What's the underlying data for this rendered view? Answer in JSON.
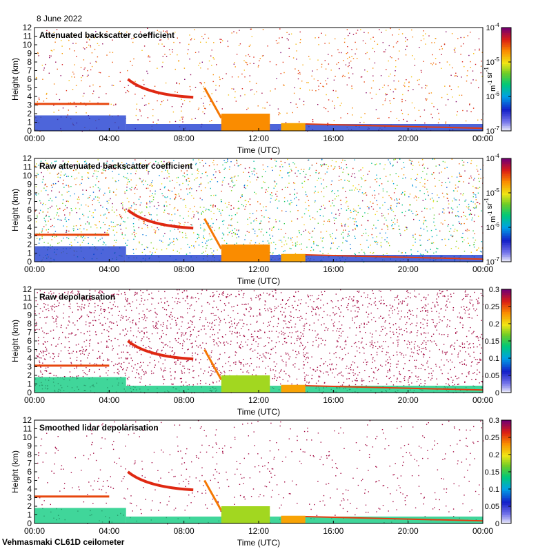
{
  "date_label": "8 June 2022",
  "footer": "Vehmasmaki CL61D ceilometer",
  "chart_data": [
    {
      "type": "heatmap",
      "title": "Attenuated backscatter coefficient",
      "xlabel": "Time (UTC)",
      "ylabel": "Height (km)",
      "x_ticks": [
        "00:00",
        "04:00",
        "08:00",
        "12:00",
        "16:00",
        "20:00",
        "00:00"
      ],
      "y_ticks": [
        "0",
        "1",
        "2",
        "3",
        "4",
        "5",
        "6",
        "7",
        "8",
        "9",
        "10",
        "11",
        "12"
      ],
      "ylim": [
        0,
        12
      ],
      "colorbar": {
        "scale": "log",
        "range": [
          1e-07,
          0.0001
        ],
        "ticks": [
          {
            "base": "10",
            "exp": "-4"
          },
          {
            "base": "10",
            "exp": "-5"
          },
          {
            "base": "10",
            "exp": "-6"
          },
          {
            "base": "10",
            "exp": "-7"
          }
        ],
        "unit_parts": [
          {
            "base": "m",
            "exp": "-1"
          },
          {
            "base": " sr",
            "exp": "-1"
          }
        ],
        "colormap": "jet"
      }
    },
    {
      "type": "heatmap",
      "title": "Raw attenuated backscatter coefficient",
      "xlabel": "Time (UTC)",
      "ylabel": "Height (km)",
      "x_ticks": [
        "00:00",
        "04:00",
        "08:00",
        "12:00",
        "16:00",
        "20:00",
        "00:00"
      ],
      "y_ticks": [
        "0",
        "1",
        "2",
        "3",
        "4",
        "5",
        "6",
        "7",
        "8",
        "9",
        "10",
        "11",
        "12"
      ],
      "ylim": [
        0,
        12
      ],
      "colorbar": {
        "scale": "log",
        "range": [
          1e-07,
          0.0001
        ],
        "ticks": [
          {
            "base": "10",
            "exp": "-4"
          },
          {
            "base": "10",
            "exp": "-5"
          },
          {
            "base": "10",
            "exp": "-6"
          },
          {
            "base": "10",
            "exp": "-7"
          }
        ],
        "unit_parts": [
          {
            "base": "m",
            "exp": "-1"
          },
          {
            "base": " sr",
            "exp": "-1"
          }
        ],
        "colormap": "jet"
      }
    },
    {
      "type": "heatmap",
      "title": "Raw depolarisation",
      "xlabel": "Time (UTC)",
      "ylabel": "Height (km)",
      "x_ticks": [
        "00:00",
        "04:00",
        "08:00",
        "12:00",
        "16:00",
        "20:00",
        "00:00"
      ],
      "y_ticks": [
        "0",
        "1",
        "2",
        "3",
        "4",
        "5",
        "6",
        "7",
        "8",
        "9",
        "10",
        "11",
        "12"
      ],
      "ylim": [
        0,
        12
      ],
      "colorbar": {
        "scale": "linear",
        "range": [
          0,
          0.3
        ],
        "ticks": [
          "0.3",
          "0.25",
          "0.2",
          "0.15",
          "0.1",
          "0.05",
          "0"
        ],
        "colormap": "jet"
      }
    },
    {
      "type": "heatmap",
      "title": "Smoothed lidar depolarisation",
      "xlabel": "Time (UTC)",
      "ylabel": "Height (km)",
      "x_ticks": [
        "00:00",
        "04:00",
        "08:00",
        "12:00",
        "16:00",
        "20:00",
        "00:00"
      ],
      "y_ticks": [
        "0",
        "1",
        "2",
        "3",
        "4",
        "5",
        "6",
        "7",
        "8",
        "9",
        "10",
        "11",
        "12"
      ],
      "ylim": [
        0,
        12
      ],
      "colorbar": {
        "scale": "linear",
        "range": [
          0,
          0.3
        ],
        "ticks": [
          "0.3",
          "0.25",
          "0.2",
          "0.15",
          "0.1",
          "0.05",
          "0"
        ],
        "colormap": "jet"
      }
    }
  ]
}
